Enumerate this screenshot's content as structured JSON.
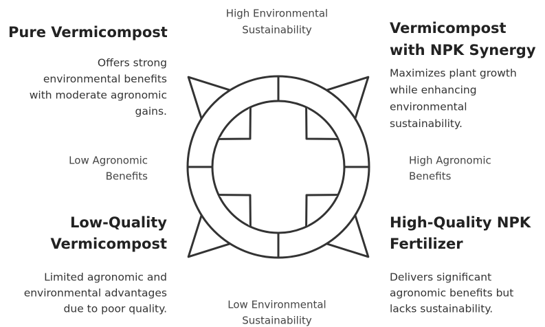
{
  "axes": {
    "top": {
      "lines": [
        "High Environmental",
        "Sustainability"
      ]
    },
    "bottom": {
      "lines": [
        "Low Environmental",
        "Sustainability"
      ]
    },
    "left": {
      "lines": [
        "Low Agronomic",
        "Benefits"
      ]
    },
    "right": {
      "lines": [
        "High Agronomic",
        "Benefits"
      ]
    }
  },
  "quadrants": {
    "top_left": {
      "title": [
        "Pure Vermicompost"
      ],
      "description": [
        "Offers strong",
        "environmental benefits",
        "with moderate agronomic",
        "gains."
      ]
    },
    "top_right": {
      "title": [
        "Vermicompost",
        "with NPK Synergy"
      ],
      "description": [
        "Maximizes plant growth",
        "while enhancing",
        "environmental",
        "sustainability."
      ]
    },
    "bottom_left": {
      "title": [
        "Low-Quality",
        "Vermicompost"
      ],
      "description": [
        "Limited agronomic and",
        "environmental advantages",
        "due to poor quality."
      ]
    },
    "bottom_right": {
      "title": [
        "High-Quality NPK",
        "Fertilizer"
      ],
      "description": [
        "Delivers significant",
        "agronomic benefits but",
        "lacks sustainability."
      ]
    }
  }
}
